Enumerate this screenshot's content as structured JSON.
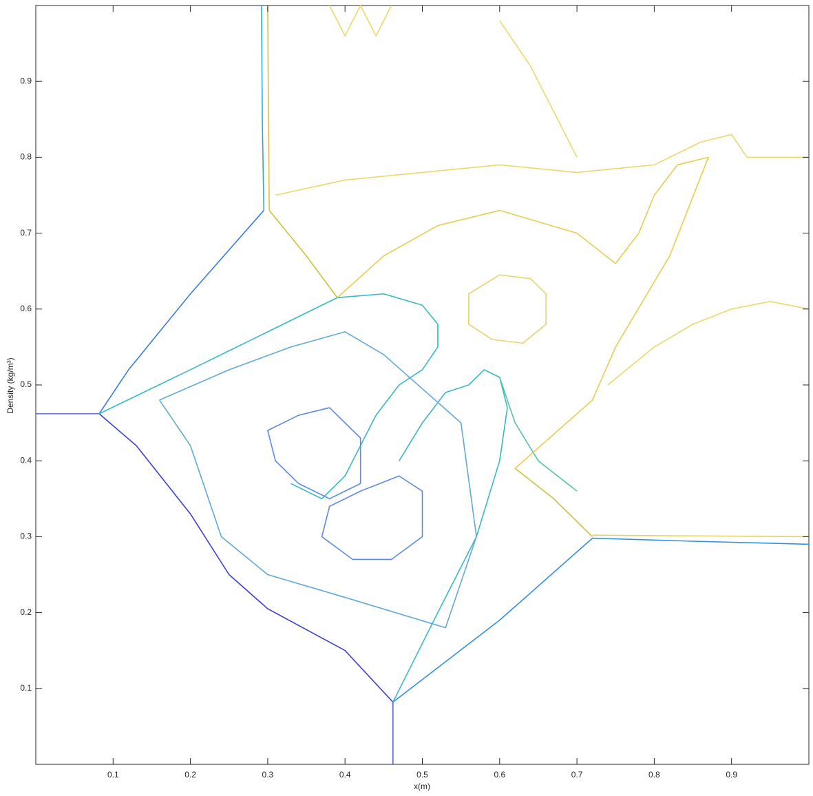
{
  "chart_data": {
    "type": "contour",
    "xlabel": "x(m)",
    "ylabel": "Density (kg/m³)",
    "xlim": [
      0,
      1
    ],
    "ylim": [
      0,
      1
    ],
    "xticks": [
      0.1,
      0.2,
      0.3,
      0.4,
      0.5,
      0.6,
      0.7,
      0.8,
      0.9
    ],
    "yticks": [
      0.1,
      0.2,
      0.3,
      0.4,
      0.5,
      0.6,
      0.7,
      0.8,
      0.9
    ],
    "contours": [
      {
        "color": "#2fa8d8",
        "x": [
          0.292,
          0.293,
          0.295
        ],
        "y": [
          1,
          0.85,
          0.73
        ]
      },
      {
        "color": "#e0c23a",
        "x": [
          0.3,
          0.301,
          0.302
        ],
        "y": [
          1,
          0.85,
          0.73
        ]
      },
      {
        "color": "#3a7be0",
        "x": [
          0.295,
          0.2,
          0.12,
          0.082
        ],
        "y": [
          0.73,
          0.62,
          0.52,
          0.462
        ]
      },
      {
        "color": "#5a64e0",
        "x": [
          0,
          0.082
        ],
        "y": [
          0.462,
          0.462
        ]
      },
      {
        "color": "#3d3fd1",
        "x": [
          0.082,
          0.13,
          0.2,
          0.25,
          0.3,
          0.4,
          0.462
        ],
        "y": [
          0.462,
          0.42,
          0.33,
          0.25,
          0.205,
          0.15,
          0.082
        ]
      },
      {
        "color": "#5a64e0",
        "x": [
          0.462,
          0.462
        ],
        "y": [
          0.082,
          0
        ]
      },
      {
        "color": "#2f8fe0",
        "x": [
          0.462,
          0.6,
          0.72
        ],
        "y": [
          0.082,
          0.19,
          0.298
        ]
      },
      {
        "color": "#2f8fe0",
        "x": [
          0.72,
          0.85,
          1
        ],
        "y": [
          0.298,
          0.294,
          0.29
        ]
      },
      {
        "color": "#c9c33a",
        "x": [
          0.302,
          0.35,
          0.39
        ],
        "y": [
          0.73,
          0.67,
          0.615
        ]
      },
      {
        "color": "#c9c33a",
        "x": [
          0.62,
          0.67,
          0.72
        ],
        "y": [
          0.39,
          0.35,
          0.3
        ]
      },
      {
        "color": "#e6d26a",
        "x": [
          0.72,
          0.85,
          1
        ],
        "y": [
          0.302,
          0.301,
          0.3
        ]
      },
      {
        "color": "#35b8c5",
        "x": [
          0.082,
          0.2,
          0.3,
          0.39,
          0.45,
          0.5,
          0.52,
          0.52,
          0.5,
          0.47,
          0.44,
          0.42,
          0.4,
          0.37,
          0.33
        ],
        "y": [
          0.462,
          0.52,
          0.57,
          0.615,
          0.62,
          0.605,
          0.58,
          0.55,
          0.52,
          0.5,
          0.46,
          0.42,
          0.38,
          0.35,
          0.37
        ]
      },
      {
        "color": "#35b8c5",
        "x": [
          0.462,
          0.52,
          0.57,
          0.6,
          0.61,
          0.6,
          0.58,
          0.56,
          0.53,
          0.5,
          0.47
        ],
        "y": [
          0.082,
          0.2,
          0.3,
          0.4,
          0.47,
          0.51,
          0.52,
          0.5,
          0.49,
          0.45,
          0.4
        ]
      },
      {
        "color": "#52c2a8",
        "x": [
          0.6,
          0.62,
          0.65,
          0.7
        ],
        "y": [
          0.51,
          0.45,
          0.4,
          0.36
        ]
      },
      {
        "color": "#5a8ae0",
        "x": [
          0.34,
          0.38,
          0.42,
          0.42,
          0.38,
          0.34,
          0.31,
          0.3,
          0.34
        ],
        "y": [
          0.46,
          0.47,
          0.43,
          0.37,
          0.35,
          0.37,
          0.4,
          0.44,
          0.46
        ]
      },
      {
        "color": "#5a8ae0",
        "x": [
          0.42,
          0.47,
          0.5,
          0.5,
          0.46,
          0.41,
          0.37,
          0.38,
          0.42
        ],
        "y": [
          0.36,
          0.38,
          0.36,
          0.3,
          0.27,
          0.27,
          0.3,
          0.34,
          0.36
        ]
      },
      {
        "color": "#5fa8d8",
        "x": [
          0.16,
          0.25,
          0.33,
          0.4,
          0.45,
          0.55,
          0.57,
          0.53,
          0.4,
          0.3,
          0.24,
          0.2,
          0.16
        ],
        "y": [
          0.48,
          0.52,
          0.55,
          0.57,
          0.54,
          0.45,
          0.3,
          0.18,
          0.22,
          0.25,
          0.3,
          0.42,
          0.48
        ]
      },
      {
        "color": "#e6d26a",
        "x": [
          0.6,
          0.64,
          0.66,
          0.66,
          0.63,
          0.59,
          0.56,
          0.56,
          0.6
        ],
        "y": [
          0.645,
          0.64,
          0.62,
          0.58,
          0.555,
          0.56,
          0.58,
          0.62,
          0.645
        ]
      },
      {
        "color": "#e8cc50",
        "x": [
          0.39,
          0.45,
          0.52,
          0.6,
          0.7,
          0.75,
          0.78,
          0.8,
          0.83,
          0.87,
          0.82,
          0.75,
          0.72,
          0.62
        ],
        "y": [
          0.615,
          0.67,
          0.71,
          0.73,
          0.7,
          0.66,
          0.7,
          0.75,
          0.79,
          0.8,
          0.67,
          0.55,
          0.48,
          0.39
        ]
      },
      {
        "color": "#ead86a",
        "x": [
          0.31,
          0.4,
          0.5,
          0.6,
          0.7,
          0.8,
          0.86,
          0.9,
          0.92,
          1
        ],
        "y": [
          0.75,
          0.77,
          0.78,
          0.79,
          0.78,
          0.79,
          0.82,
          0.83,
          0.8,
          0.8
        ]
      },
      {
        "color": "#ead86a",
        "x": [
          0.74,
          0.8,
          0.85,
          0.9,
          0.95,
          1
        ],
        "y": [
          0.5,
          0.55,
          0.58,
          0.6,
          0.61,
          0.6
        ]
      },
      {
        "color": "#ead86a",
        "x": [
          0.38,
          0.4,
          0.42,
          0.44,
          0.46
        ],
        "y": [
          1,
          0.96,
          1,
          0.96,
          1
        ]
      },
      {
        "color": "#ead86a",
        "x": [
          0.6,
          0.64,
          0.66,
          0.68,
          0.7
        ],
        "y": [
          0.98,
          0.92,
          0.88,
          0.84,
          0.8
        ]
      }
    ]
  }
}
